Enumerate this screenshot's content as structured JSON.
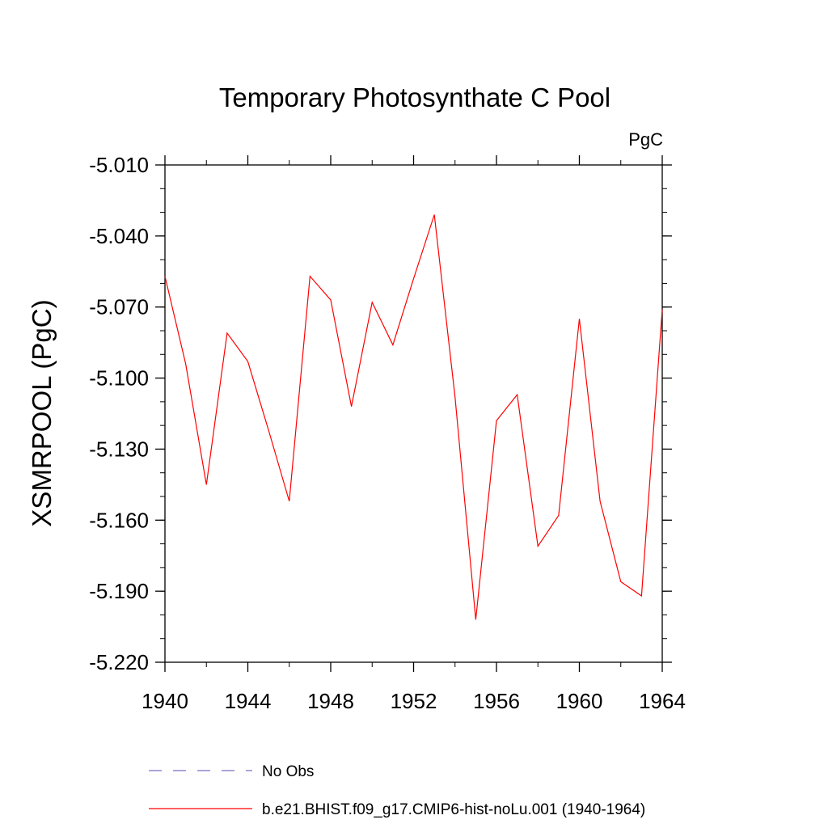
{
  "chart_data": {
    "type": "line",
    "title": "Temporary Photosynthate C Pool",
    "units": "PgC",
    "ylabel": "XSMRPOOL  (PgC)",
    "xlabel": "",
    "xlim": [
      1940,
      1964
    ],
    "ylim": [
      -5.22,
      -5.01
    ],
    "xticks": [
      "1940",
      "1944",
      "1948",
      "1952",
      "1956",
      "1960",
      "1964"
    ],
    "yticks": [
      "-5.010",
      "-5.040",
      "-5.070",
      "-5.100",
      "-5.130",
      "-5.160",
      "-5.190",
      "-5.220"
    ],
    "grid": false,
    "legend_position": "bottom",
    "x": [
      1940,
      1941,
      1942,
      1943,
      1944,
      1945,
      1946,
      1947,
      1948,
      1949,
      1950,
      1951,
      1952,
      1953,
      1954,
      1955,
      1956,
      1957,
      1958,
      1959,
      1960,
      1961,
      1962,
      1963,
      1964
    ],
    "series": [
      {
        "name": "b.e21.BHIST.f09_g17.CMIP6-hist-noLu.001 (1940-1964)",
        "color": "#ff0000",
        "style": "solid",
        "values": [
          -5.057,
          -5.094,
          -5.145,
          -5.081,
          -5.093,
          -5.122,
          -5.152,
          -5.057,
          -5.067,
          -5.112,
          -5.068,
          -5.086,
          -5.058,
          -5.031,
          -5.108,
          -5.202,
          -5.118,
          -5.107,
          -5.171,
          -5.158,
          -5.075,
          -5.152,
          -5.186,
          -5.192,
          -5.071
        ]
      }
    ],
    "legend": [
      {
        "label": "No Obs",
        "color": "#7a6fc2",
        "style": "dashed"
      },
      {
        "label": "b.e21.BHIST.f09_g17.CMIP6-hist-noLu.001 (1940-1964)",
        "color": "#ff0000",
        "style": "solid"
      }
    ]
  }
}
